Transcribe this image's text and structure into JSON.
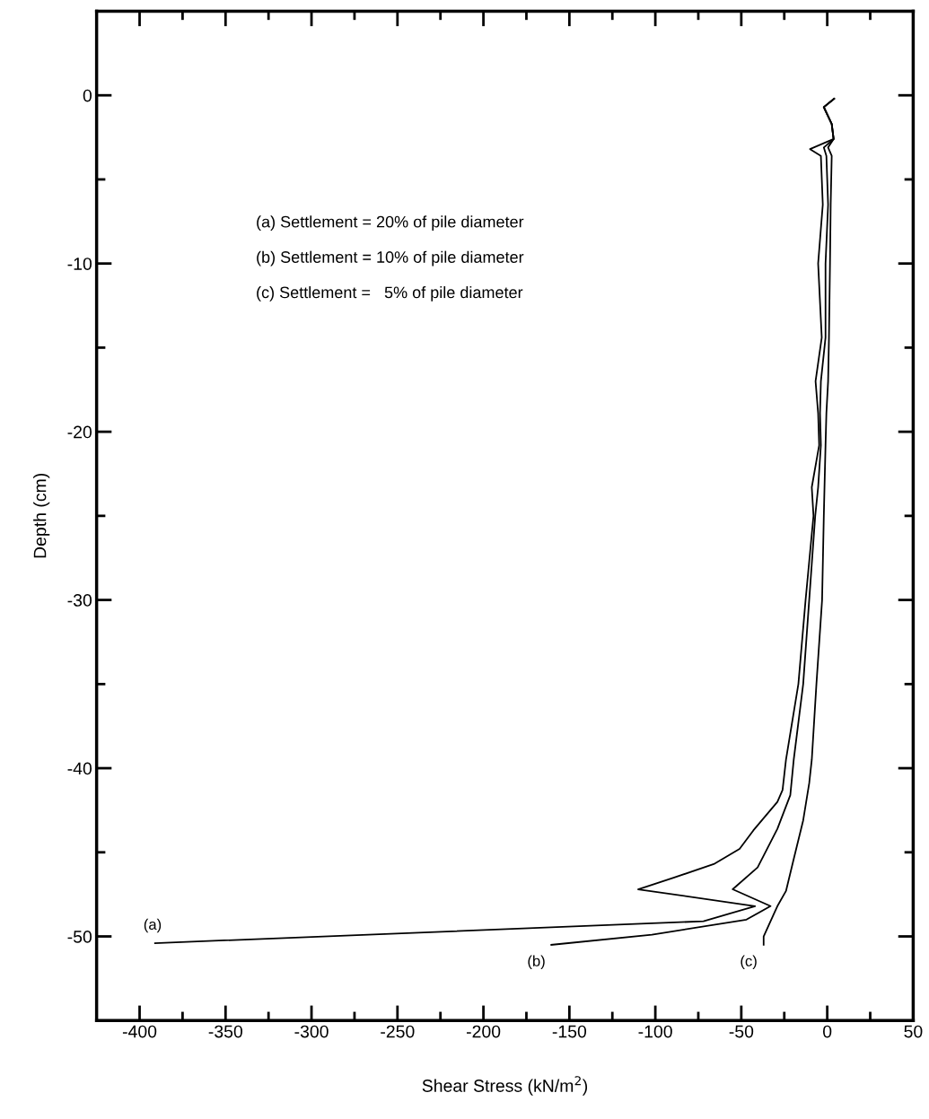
{
  "chart_data": {
    "type": "line",
    "xlabel": "Shear Stress (kN/m$^{2}$)",
    "ylabel": "Depth (cm)",
    "xlim": [
      -425,
      50
    ],
    "ylim": [
      -55,
      5
    ],
    "xticks": [
      -400,
      {
        "value": -375,
        "label": null
      },
      -350,
      {
        "value": -325,
        "label": null
      },
      -300,
      {
        "value": -275,
        "label": null
      },
      -250,
      {
        "value": -225,
        "label": null
      },
      -200,
      {
        "value": -175,
        "label": null
      },
      -150,
      {
        "value": -125,
        "label": null
      },
      -100,
      {
        "value": -75,
        "label": null
      },
      -50,
      {
        "value": -25,
        "label": null
      },
      0,
      {
        "value": 25,
        "label": null
      },
      50
    ],
    "yticks": [
      0,
      {
        "value": -5,
        "label": null
      },
      -10,
      {
        "value": -15,
        "label": null
      },
      -20,
      {
        "value": -25,
        "label": null
      },
      -30,
      {
        "value": -35,
        "label": null
      },
      -40,
      {
        "value": -45,
        "label": null
      },
      -50
    ],
    "grid": false,
    "legend": false,
    "marker": "none",
    "line_style": "solid",
    "series": [
      {
        "name": "(a)",
        "color": "#000000",
        "x": [
          4,
          -2,
          2.6,
          3.7,
          -10,
          -3.7,
          -2.6,
          -5.3,
          -3.2,
          -6.8,
          -5.3,
          -4.7,
          -9,
          -8,
          -12.6,
          -16.8,
          -24,
          -26,
          -29,
          -43,
          -51,
          -66,
          -89,
          -110,
          -42,
          -72,
          -391
        ],
        "values": [
          -0.2,
          -0.7,
          -1.7,
          -2.6,
          -3.2,
          -3.6,
          -6.5,
          -10,
          -14.4,
          -17,
          -18.9,
          -20.8,
          -23.3,
          -25,
          -30,
          -35,
          -39.5,
          -41.3,
          -42,
          -43.7,
          -44.8,
          -45.7,
          -46.5,
          -47.2,
          -48.2,
          -49.1,
          -50.4
        ]
      },
      {
        "name": "(b)",
        "color": "#000000",
        "x": [
          4,
          -2,
          2.6,
          3.7,
          -2,
          -0.5,
          0.5,
          -1,
          -1,
          -3.7,
          -4.2,
          -3.7,
          -5.3,
          -7,
          -10.5,
          -14,
          -19.5,
          -21.5,
          -29,
          -40.5,
          -55,
          -33,
          -47,
          -102,
          -160.5
        ],
        "values": [
          -0.2,
          -0.7,
          -1.7,
          -2.6,
          -3.1,
          -3.6,
          -6.5,
          -10,
          -14.4,
          -17,
          -18.9,
          -20.8,
          -23.3,
          -25,
          -30,
          -35,
          -39.5,
          -41.6,
          -43.6,
          -45.9,
          -47.2,
          -48.2,
          -49,
          -49.9,
          -50.5
        ]
      },
      {
        "name": "(c)",
        "color": "#000000",
        "x": [
          4,
          -2,
          2.6,
          3.7,
          0.5,
          2.6,
          2,
          1.6,
          1,
          0.5,
          -0.5,
          -1,
          -1.6,
          -2,
          -3,
          -6.3,
          -9,
          -10.5,
          -14,
          -19.5,
          -24,
          -29,
          -37,
          -37
        ],
        "values": [
          -0.2,
          -0.7,
          -1.7,
          -2.6,
          -3.1,
          -3.6,
          -6.5,
          -10,
          -14.4,
          -17,
          -18.9,
          -20.8,
          -23.3,
          -25,
          -30,
          -35,
          -39.5,
          -40.9,
          -43.1,
          -45.4,
          -47.3,
          -48.2,
          -50,
          -50.5
        ]
      }
    ],
    "annotations": [
      "(a) Settlement = 20% of pile diameter",
      "(b) Settlement = 10% of pile diameter",
      "(c) Settlement =   5% of pile diameter"
    ]
  }
}
